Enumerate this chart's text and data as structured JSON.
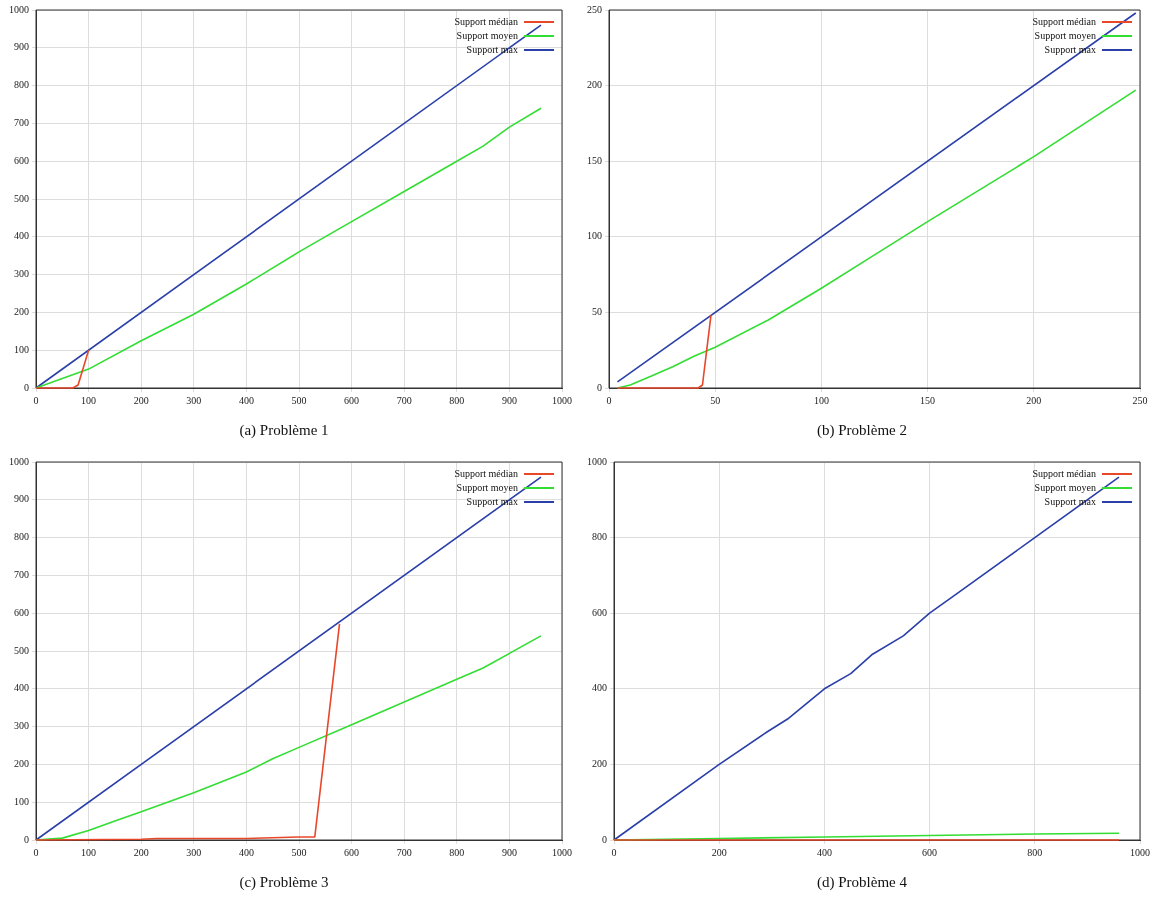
{
  "chart_data": [
    {
      "type": "line",
      "title": "(a) Problème 1",
      "xlim": [
        0,
        1000
      ],
      "ylim": [
        0,
        1000
      ],
      "xticks": [
        0,
        100,
        200,
        300,
        400,
        500,
        600,
        700,
        800,
        900,
        1000
      ],
      "yticks": [
        0,
        100,
        200,
        300,
        400,
        500,
        600,
        700,
        800,
        900,
        1000
      ],
      "grid": true,
      "legend": "top right",
      "marker": "none",
      "series": [
        {
          "name": "Support médian",
          "color": "#e8472a",
          "x": [
            0,
            70,
            80,
            100
          ],
          "values": [
            0,
            0,
            8,
            100
          ]
        },
        {
          "name": "Support moyen",
          "color": "#33dd33",
          "x": [
            0,
            100,
            200,
            300,
            400,
            500,
            600,
            700,
            800,
            850,
            900,
            960
          ],
          "values": [
            0,
            50,
            125,
            195,
            275,
            360,
            440,
            520,
            600,
            640,
            690,
            740
          ]
        },
        {
          "name": "Support max",
          "color": "#2a3fa8",
          "x": [
            0,
            960
          ],
          "values": [
            0,
            960
          ]
        }
      ]
    },
    {
      "type": "line",
      "title": "(b) Problème 2",
      "xlim": [
        0,
        250
      ],
      "ylim": [
        0,
        250
      ],
      "xticks": [
        0,
        50,
        100,
        150,
        200,
        250
      ],
      "yticks": [
        0,
        50,
        100,
        150,
        200,
        250
      ],
      "grid": true,
      "legend": "top right",
      "marker": "none",
      "series": [
        {
          "name": "Support médian",
          "color": "#e8472a",
          "x": [
            4,
            42,
            44,
            48
          ],
          "values": [
            0,
            0,
            2,
            48
          ]
        },
        {
          "name": "Support moyen",
          "color": "#33dd33",
          "x": [
            4,
            10,
            20,
            30,
            40,
            50,
            75,
            100,
            125,
            150,
            200,
            248
          ],
          "values": [
            0,
            2,
            8,
            14,
            21,
            27,
            45,
            66,
            88,
            110,
            153,
            197
          ]
        },
        {
          "name": "Support max",
          "color": "#2a3fa8",
          "x": [
            4,
            248
          ],
          "values": [
            4,
            248
          ]
        }
      ]
    },
    {
      "type": "line",
      "title": "(c) Problème 3",
      "xlim": [
        0,
        1000
      ],
      "ylim": [
        0,
        1000
      ],
      "xticks": [
        0,
        100,
        200,
        300,
        400,
        500,
        600,
        700,
        800,
        900,
        1000
      ],
      "yticks": [
        0,
        100,
        200,
        300,
        400,
        500,
        600,
        700,
        800,
        900,
        1000
      ],
      "grid": true,
      "legend": "top right",
      "marker": "none",
      "series": [
        {
          "name": "Support médian",
          "color": "#e8472a",
          "x": [
            0,
            200,
            230,
            400,
            500,
            530,
            577
          ],
          "values": [
            0,
            2,
            4,
            4,
            8,
            8,
            572
          ]
        },
        {
          "name": "Support moyen",
          "color": "#33dd33",
          "x": [
            0,
            50,
            100,
            150,
            200,
            300,
            400,
            450,
            500,
            600,
            700,
            800,
            850,
            960
          ],
          "values": [
            0,
            5,
            25,
            50,
            75,
            125,
            180,
            215,
            245,
            305,
            365,
            425,
            455,
            540
          ]
        },
        {
          "name": "Support max",
          "color": "#2a3fa8",
          "x": [
            0,
            960
          ],
          "values": [
            0,
            960
          ]
        }
      ]
    },
    {
      "type": "line",
      "title": "(d) Problème 4",
      "xlim": [
        0,
        1000
      ],
      "ylim": [
        0,
        1000
      ],
      "xticks": [
        0,
        200,
        400,
        600,
        800,
        1000
      ],
      "yticks": [
        0,
        200,
        400,
        600,
        800,
        1000
      ],
      "grid": true,
      "legend": "top right",
      "marker": "none",
      "series": [
        {
          "name": "Support médian",
          "color": "#e8472a",
          "x": [
            0,
            960
          ],
          "values": [
            0,
            0
          ]
        },
        {
          "name": "Support moyen",
          "color": "#33dd33",
          "x": [
            0,
            200,
            400,
            600,
            800,
            960
          ],
          "values": [
            0,
            4,
            8,
            12,
            16,
            18
          ]
        },
        {
          "name": "Support max",
          "color": "#2a3fa8",
          "x": [
            0,
            200,
            290,
            330,
            400,
            450,
            490,
            550,
            600,
            650,
            800,
            960
          ],
          "values": [
            0,
            200,
            285,
            320,
            400,
            440,
            490,
            540,
            600,
            650,
            800,
            960
          ]
        }
      ]
    }
  ]
}
